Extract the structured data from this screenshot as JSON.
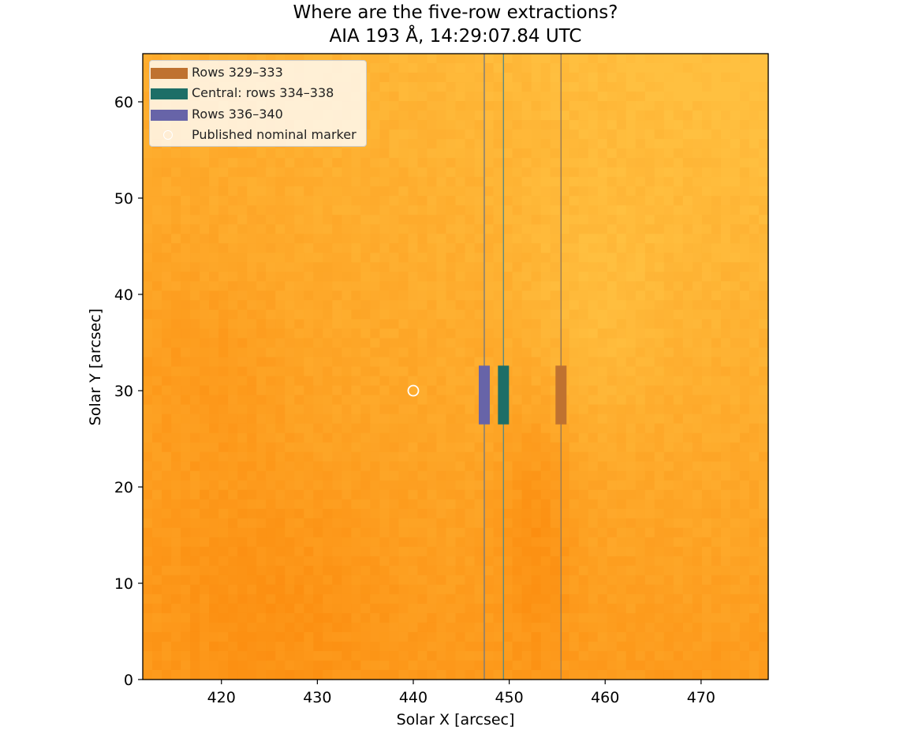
{
  "chart_data": {
    "type": "heatmap",
    "title": "Where are the five-row extractions?",
    "subtitle": "AIA 193 Å, 14:29:07.84 UTC",
    "xlabel": "Solar X [arcsec]",
    "ylabel": "Solar Y [arcsec]",
    "xlim": [
      411.8,
      477.0
    ],
    "ylim": [
      0,
      65
    ],
    "xticks": [
      420,
      430,
      440,
      450,
      460,
      470
    ],
    "yticks": [
      0,
      10,
      20,
      30,
      40,
      50,
      60
    ],
    "xtick_labels": [
      "420",
      "430",
      "440",
      "450",
      "460",
      "470"
    ],
    "ytick_labels": [
      "0",
      "10",
      "20",
      "30",
      "40",
      "50",
      "60"
    ],
    "grid": false,
    "colormap": "orange",
    "colors": {
      "dark": "#fb7d00",
      "light": "#ffc040"
    },
    "legend_position": "top-left",
    "vertical_lines": [
      {
        "x": 447.4,
        "color": "#7a7a7a"
      },
      {
        "x": 449.4,
        "color": "#5e8a7e"
      },
      {
        "x": 455.4,
        "color": "#9a7a55"
      }
    ],
    "series": [
      {
        "name": "Rows 329–333",
        "color": "#bf7230",
        "x": 455.4,
        "y_range": [
          26.5,
          32.6
        ]
      },
      {
        "name": "Central: rows 334–338",
        "color": "#1d6e67",
        "x": 449.4,
        "y_range": [
          26.5,
          32.6
        ]
      },
      {
        "name": "Rows 336–340",
        "color": "#6764a8",
        "x": 447.4,
        "y_range": [
          26.5,
          32.6
        ]
      }
    ],
    "marker": {
      "name": "Published nominal marker",
      "x": 440.0,
      "y": 30.0,
      "color": "#ffffff"
    }
  }
}
